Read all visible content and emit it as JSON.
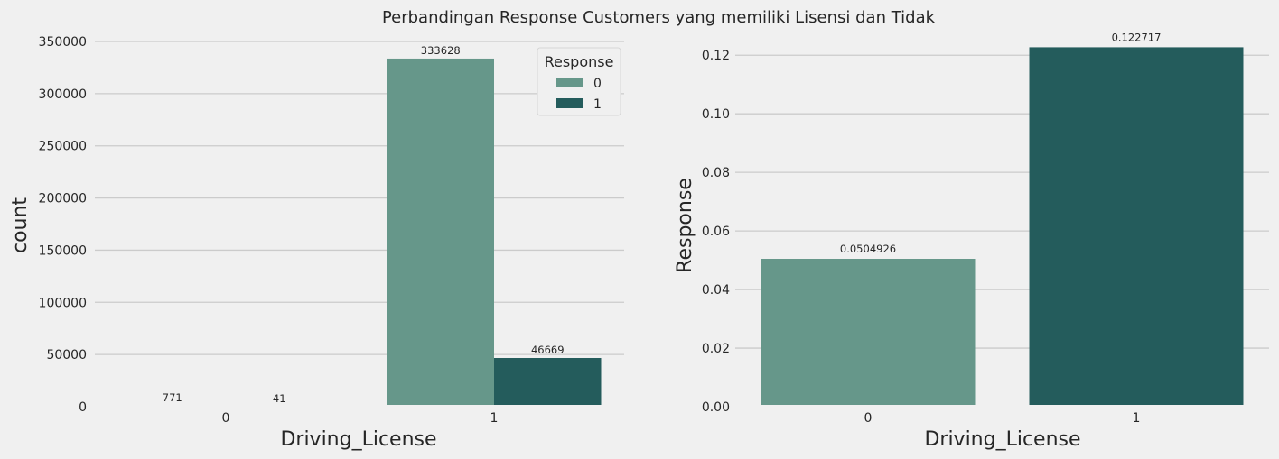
{
  "suptitle": "Perbandingan Response Customers yang memiliki Lisensi dan Tidak",
  "colors": {
    "response_0": "#66978a",
    "response_1": "#245c5c",
    "grid": "#cbcbcb",
    "background": "#f0f0f0"
  },
  "chart_data": [
    {
      "type": "bar",
      "xlabel": "Driving_License",
      "ylabel": "count",
      "categories": [
        "0",
        "1"
      ],
      "ylim": [
        0,
        350000
      ],
      "yticks": [
        "0",
        "50000",
        "100000",
        "150000",
        "200000",
        "250000",
        "300000",
        "350000"
      ],
      "yticks_values": [
        0,
        50000,
        100000,
        150000,
        200000,
        250000,
        300000,
        350000
      ],
      "grid": true,
      "legend": {
        "title": "Response",
        "placement": "top-right",
        "entries": [
          "0",
          "1"
        ]
      },
      "series": [
        {
          "name": "0",
          "values": [
            771,
            333628
          ],
          "labels": [
            "771",
            "333628"
          ]
        },
        {
          "name": "1",
          "values": [
            41,
            46669
          ],
          "labels": [
            "41",
            "46669"
          ]
        }
      ]
    },
    {
      "type": "bar",
      "xlabel": "Driving_License",
      "ylabel": "Response",
      "categories": [
        "0",
        "1"
      ],
      "ylim": [
        0,
        0.125
      ],
      "yticks": [
        "0.00",
        "0.02",
        "0.04",
        "0.06",
        "0.08",
        "0.10",
        "0.12"
      ],
      "yticks_values": [
        0,
        0.02,
        0.04,
        0.06,
        0.08,
        0.1,
        0.12
      ],
      "grid": true,
      "values": [
        0.0504926,
        0.122717
      ],
      "labels": [
        "0.0504926",
        "0.122717"
      ]
    }
  ]
}
